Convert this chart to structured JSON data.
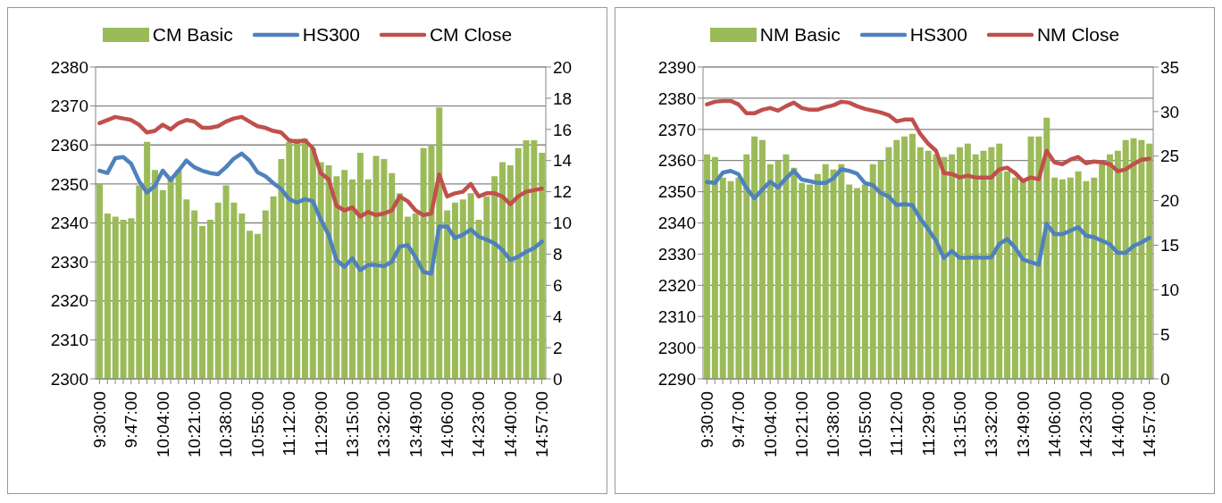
{
  "chart_data": [
    {
      "type": "bar",
      "legend": "top",
      "grid": "y",
      "marker": "none",
      "line_style": "solid",
      "categories": [
        "9:30:00",
        null,
        null,
        null,
        "9:47:00",
        null,
        null,
        null,
        "10:04:00",
        null,
        null,
        null,
        "10:21:00",
        null,
        null,
        null,
        "10:38:00",
        null,
        null,
        null,
        "10:55:00",
        null,
        null,
        null,
        "11:12:00",
        null,
        null,
        null,
        "11:29:00",
        null,
        null,
        null,
        "13:15:00",
        null,
        null,
        null,
        "13:32:00",
        null,
        null,
        null,
        "13:49:00",
        null,
        null,
        null,
        "14:06:00",
        null,
        null,
        null,
        "14:23:00",
        null,
        null,
        null,
        "14:40:00",
        null,
        null,
        null,
        "14:57:00"
      ],
      "ylim": [
        2300,
        2380
      ],
      "yticks": [
        2300,
        2310,
        2320,
        2330,
        2340,
        2350,
        2360,
        2370,
        2380
      ],
      "y2lim": [
        0,
        20
      ],
      "y2ticks": [
        0,
        2,
        4,
        6,
        8,
        10,
        12,
        14,
        16,
        18,
        20
      ],
      "series": [
        {
          "name": "CM Basic",
          "axis": "y2",
          "color": "#9bbb59",
          "values": [
            12.5,
            10.6,
            10.4,
            10.2,
            10.3,
            12.4,
            15.2,
            13.4,
            12.1,
            12.8,
            13.4,
            11.5,
            10.8,
            9.8,
            10.2,
            11.3,
            12.4,
            11.3,
            10.6,
            9.5,
            9.3,
            10.8,
            11.7,
            14.1,
            15.2,
            15.4,
            15.4,
            14.8,
            13.9,
            13.7,
            13.0,
            13.4,
            12.8,
            14.5,
            12.8,
            14.3,
            14.1,
            13.2,
            11.9,
            10.4,
            10.6,
            14.8,
            15.0,
            17.4,
            10.8,
            11.3,
            11.5,
            11.9,
            10.2,
            11.7,
            13.0,
            13.9,
            13.7,
            14.8,
            15.3,
            15.3,
            14.5
          ]
        },
        {
          "name": "HS300",
          "type": "line",
          "color": "#4f81bd",
          "values": [
            2353.4,
            2352.8,
            2356.6,
            2356.9,
            2355.2,
            2350.8,
            2347.8,
            2349.5,
            2353.4,
            2351.0,
            2353.4,
            2356.0,
            2354.3,
            2353.4,
            2352.8,
            2352.5,
            2354.3,
            2356.5,
            2357.8,
            2356.0,
            2353.0,
            2352.0,
            2350.2,
            2348.7,
            2346.1,
            2345.2,
            2346.1,
            2345.6,
            2340.9,
            2337.0,
            2330.5,
            2328.7,
            2330.9,
            2327.9,
            2329.2,
            2329.2,
            2328.9,
            2330.0,
            2333.9,
            2334.3,
            2331.3,
            2327.4,
            2327.0,
            2339.1,
            2339.1,
            2336.1,
            2337.0,
            2338.3,
            2336.5,
            2335.7,
            2334.8,
            2333.1,
            2330.5,
            2331.3,
            2332.6,
            2333.5,
            2335.2
          ]
        },
        {
          "name": "CM Close",
          "type": "line",
          "axis": "y2",
          "color": "#c0504d",
          "values": [
            16.4,
            16.6,
            16.8,
            16.7,
            16.6,
            16.3,
            15.8,
            15.9,
            16.3,
            16.0,
            16.4,
            16.6,
            16.5,
            16.1,
            16.1,
            16.2,
            16.5,
            16.7,
            16.8,
            16.5,
            16.2,
            16.1,
            15.9,
            15.8,
            15.3,
            15.2,
            15.3,
            14.8,
            13.2,
            12.8,
            11.1,
            10.8,
            11.0,
            10.4,
            10.7,
            10.5,
            10.6,
            10.8,
            11.7,
            11.4,
            10.8,
            10.5,
            10.6,
            13.1,
            11.7,
            11.9,
            12.0,
            12.5,
            11.7,
            11.9,
            11.9,
            11.7,
            11.2,
            11.7,
            12.0,
            12.1,
            12.2
          ]
        }
      ]
    },
    {
      "type": "bar",
      "legend": "top",
      "grid": "y",
      "marker": "none",
      "line_style": "solid",
      "categories": [
        "9:30:00",
        null,
        null,
        null,
        "9:47:00",
        null,
        null,
        null,
        "10:04:00",
        null,
        null,
        null,
        "10:21:00",
        null,
        null,
        null,
        "10:38:00",
        null,
        null,
        null,
        "10:55:00",
        null,
        null,
        null,
        "11:12:00",
        null,
        null,
        null,
        "11:29:00",
        null,
        null,
        null,
        "13:15:00",
        null,
        null,
        null,
        "13:32:00",
        null,
        null,
        null,
        "13:49:00",
        null,
        null,
        null,
        "14:06:00",
        null,
        null,
        null,
        "14:23:00",
        null,
        null,
        null,
        "14:40:00",
        null,
        null,
        null,
        "14:57:00"
      ],
      "ylim": [
        2290,
        2390
      ],
      "yticks": [
        2290,
        2300,
        2310,
        2320,
        2330,
        2340,
        2350,
        2360,
        2370,
        2380,
        2390
      ],
      "y2lim": [
        0,
        35
      ],
      "y2ticks": [
        0,
        5,
        10,
        15,
        20,
        25,
        30,
        35
      ],
      "series": [
        {
          "name": "NM Basic",
          "axis": "y2",
          "color": "#9bbb59",
          "values": [
            25.2,
            24.9,
            22.6,
            22.2,
            22.6,
            25.2,
            27.2,
            26.8,
            24.1,
            24.5,
            25.2,
            23.7,
            22.0,
            21.8,
            23.0,
            24.1,
            23.5,
            24.1,
            21.8,
            21.4,
            21.8,
            24.1,
            24.5,
            26.0,
            26.8,
            27.2,
            27.5,
            26.0,
            25.6,
            25.2,
            24.9,
            25.2,
            26.0,
            26.4,
            25.2,
            25.6,
            26.0,
            26.4,
            23.3,
            22.6,
            22.2,
            27.2,
            27.2,
            29.3,
            22.6,
            22.4,
            22.6,
            23.3,
            22.2,
            22.6,
            24.1,
            25.2,
            25.6,
            26.8,
            27.0,
            26.8,
            26.4
          ]
        },
        {
          "name": "HS300",
          "type": "line",
          "color": "#4f81bd",
          "values": [
            2353.1,
            2352.8,
            2356.1,
            2356.7,
            2355.6,
            2351.2,
            2347.9,
            2350.7,
            2353.2,
            2351.4,
            2354.3,
            2356.7,
            2353.9,
            2353.4,
            2352.8,
            2352.8,
            2354.3,
            2357.2,
            2356.7,
            2355.8,
            2352.8,
            2352.1,
            2349.6,
            2348.5,
            2345.7,
            2346.0,
            2345.7,
            2341.4,
            2338.1,
            2334.3,
            2328.8,
            2331.0,
            2328.8,
            2328.8,
            2329.0,
            2328.8,
            2329.0,
            2333.2,
            2334.8,
            2332.1,
            2328.3,
            2327.4,
            2326.6,
            2339.7,
            2336.4,
            2336.4,
            2337.5,
            2338.6,
            2335.9,
            2335.4,
            2334.3,
            2333.2,
            2330.4,
            2330.4,
            2332.6,
            2333.7,
            2335.2
          ]
        },
        {
          "name": "NM Close",
          "type": "line",
          "axis": "y2",
          "color": "#c0504d",
          "values": [
            30.8,
            31.1,
            31.2,
            31.2,
            30.8,
            29.8,
            29.8,
            30.2,
            30.4,
            30.1,
            30.6,
            31.0,
            30.4,
            30.2,
            30.2,
            30.5,
            30.7,
            31.1,
            31.0,
            30.6,
            30.3,
            30.1,
            29.9,
            29.6,
            28.9,
            29.1,
            29.1,
            27.5,
            26.4,
            25.6,
            23.1,
            23.0,
            22.6,
            22.8,
            22.6,
            22.6,
            22.6,
            23.5,
            23.7,
            23.1,
            22.2,
            22.6,
            22.4,
            25.6,
            24.3,
            24.1,
            24.6,
            24.9,
            24.2,
            24.4,
            24.3,
            24.1,
            23.3,
            23.5,
            24.1,
            24.6,
            24.7
          ]
        }
      ]
    }
  ]
}
